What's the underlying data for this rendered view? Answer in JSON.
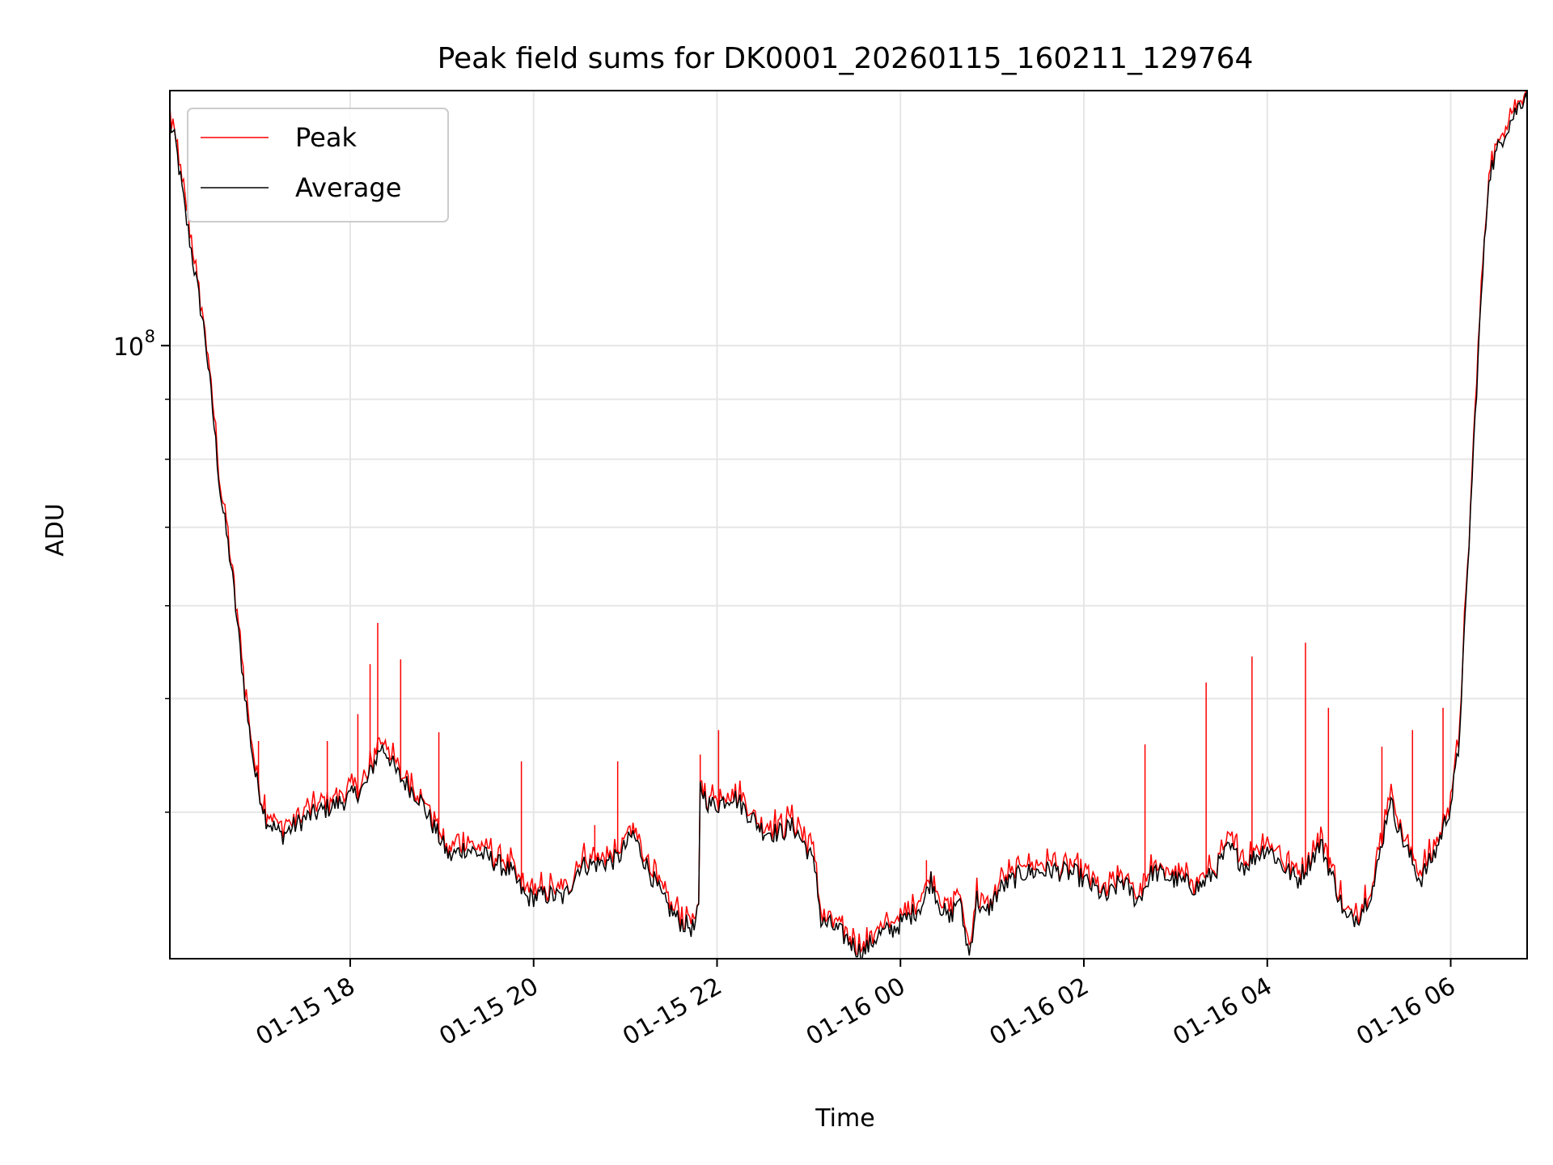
{
  "chart_data": {
    "type": "line",
    "title": "Peak field sums for DK0001_20260115_160211_129764",
    "xlabel": "Time",
    "ylabel": "ADU",
    "yscale": "log",
    "ylim": [
      30000000,
      165000000
    ],
    "xlim": [
      "2026-01-15 16:02",
      "2026-01-16 06:50"
    ],
    "grid": true,
    "legend_position": "upper-left",
    "x_ticks": [
      {
        "time": "2026-01-15 18:00",
        "label": "01-15 18"
      },
      {
        "time": "2026-01-15 20:00",
        "label": "01-15 20"
      },
      {
        "time": "2026-01-15 22:00",
        "label": "01-15 22"
      },
      {
        "time": "2026-01-16 00:00",
        "label": "01-16 00"
      },
      {
        "time": "2026-01-16 02:00",
        "label": "01-16 02"
      },
      {
        "time": "2026-01-16 04:00",
        "label": "01-16 04"
      },
      {
        "time": "2026-01-16 06:00",
        "label": "01-16 06"
      }
    ],
    "y_ticks": [
      {
        "value": 100000000,
        "base": "10",
        "exponent": "8"
      }
    ],
    "y_minor_ticks": [
      40000000,
      50000000,
      60000000,
      70000000,
      80000000,
      90000000,
      200000000
    ],
    "series": [
      {
        "name": "Peak",
        "color": "#ff0000"
      },
      {
        "name": "Average",
        "color": "#000000"
      }
    ],
    "average_points": [
      [
        "2026-01-15 16:02",
        155000000
      ],
      [
        "2026-01-15 16:06",
        148000000
      ],
      [
        "2026-01-15 16:12",
        130000000
      ],
      [
        "2026-01-15 16:20",
        112000000
      ],
      [
        "2026-01-15 16:25",
        102000000
      ],
      [
        "2026-01-15 16:30",
        88000000
      ],
      [
        "2026-01-15 16:35",
        75000000
      ],
      [
        "2026-01-15 16:42",
        65000000
      ],
      [
        "2026-01-15 16:48",
        55000000
      ],
      [
        "2026-01-15 16:53",
        48000000
      ],
      [
        "2026-01-15 16:58",
        43000000
      ],
      [
        "2026-01-15 17:05",
        39500000
      ],
      [
        "2026-01-15 17:15",
        38200000
      ],
      [
        "2026-01-15 17:30",
        39500000
      ],
      [
        "2026-01-15 17:45",
        40300000
      ],
      [
        "2026-01-15 18:00",
        41200000
      ],
      [
        "2026-01-15 18:10",
        42100000
      ],
      [
        "2026-01-15 18:15",
        43800000
      ],
      [
        "2026-01-15 18:20",
        45500000
      ],
      [
        "2026-01-15 18:25",
        44800000
      ],
      [
        "2026-01-15 18:30",
        43200000
      ],
      [
        "2026-01-15 18:45",
        41200000
      ],
      [
        "2026-01-15 18:55",
        38800000
      ],
      [
        "2026-01-15 19:05",
        36600000
      ],
      [
        "2026-01-15 19:15",
        37300000
      ],
      [
        "2026-01-15 19:30",
        36600000
      ],
      [
        "2026-01-15 19:45",
        35600000
      ],
      [
        "2026-01-15 19:55",
        33800000
      ],
      [
        "2026-01-15 20:10",
        34000000
      ],
      [
        "2026-01-15 20:20",
        33800000
      ],
      [
        "2026-01-15 20:30",
        36000000
      ],
      [
        "2026-01-15 20:45",
        36200000
      ],
      [
        "2026-01-15 20:55",
        36500000
      ],
      [
        "2026-01-15 21:05",
        38300000
      ],
      [
        "2026-01-15 21:15",
        35800000
      ],
      [
        "2026-01-15 21:25",
        33600000
      ],
      [
        "2026-01-15 21:35",
        32300000
      ],
      [
        "2026-01-15 21:45",
        31800000
      ],
      [
        "2026-01-15 21:48",
        33000000
      ],
      [
        "2026-01-15 21:49",
        42000000
      ],
      [
        "2026-01-15 21:55",
        40600000
      ],
      [
        "2026-01-15 22:00",
        40600000
      ],
      [
        "2026-01-15 22:10",
        41400000
      ],
      [
        "2026-01-15 22:20",
        40000000
      ],
      [
        "2026-01-15 22:30",
        38600000
      ],
      [
        "2026-01-15 22:40",
        38400000
      ],
      [
        "2026-01-15 22:50",
        38900000
      ],
      [
        "2026-01-15 23:00",
        37000000
      ],
      [
        "2026-01-15 23:05",
        35500000
      ],
      [
        "2026-01-15 23:08",
        32200000
      ],
      [
        "2026-01-15 23:15",
        32000000
      ],
      [
        "2026-01-15 23:25",
        31200000
      ],
      [
        "2026-01-15 23:35",
        30300000
      ],
      [
        "2026-01-15 23:45",
        31400000
      ],
      [
        "2026-01-15 23:55",
        31800000
      ],
      [
        "2026-01-16 00:05",
        32500000
      ],
      [
        "2026-01-16 00:15",
        33500000
      ],
      [
        "2026-01-16 00:20",
        35100000
      ],
      [
        "2026-01-16 00:25",
        33500000
      ],
      [
        "2026-01-16 00:32",
        32300000
      ],
      [
        "2026-01-16 00:38",
        33900000
      ],
      [
        "2026-01-16 00:45",
        30200000
      ],
      [
        "2026-01-16 00:50",
        33800000
      ],
      [
        "2026-01-16 00:55",
        32600000
      ],
      [
        "2026-01-16 01:05",
        34400000
      ],
      [
        "2026-01-16 01:20",
        35500000
      ],
      [
        "2026-01-16 01:40",
        35700000
      ],
      [
        "2026-01-16 01:55",
        35400000
      ],
      [
        "2026-01-16 02:05",
        34600000
      ],
      [
        "2026-01-16 02:15",
        33800000
      ],
      [
        "2026-01-16 02:25",
        35000000
      ],
      [
        "2026-01-16 02:35",
        33600000
      ],
      [
        "2026-01-16 02:45",
        35600000
      ],
      [
        "2026-01-16 03:00",
        35000000
      ],
      [
        "2026-01-16 03:15",
        34500000
      ],
      [
        "2026-01-16 03:25",
        35500000
      ],
      [
        "2026-01-16 03:35",
        37300000
      ],
      [
        "2026-01-16 03:45",
        36000000
      ],
      [
        "2026-01-16 04:00",
        37400000
      ],
      [
        "2026-01-16 04:10",
        36000000
      ],
      [
        "2026-01-16 04:20",
        35000000
      ],
      [
        "2026-01-16 04:35",
        37600000
      ],
      [
        "2026-01-16 04:45",
        34500000
      ],
      [
        "2026-01-16 04:52",
        32300000
      ],
      [
        "2026-01-16 05:00",
        32700000
      ],
      [
        "2026-01-16 05:10",
        34700000
      ],
      [
        "2026-01-16 05:20",
        41000000
      ],
      [
        "2026-01-16 05:30",
        37500000
      ],
      [
        "2026-01-16 05:40",
        35000000
      ],
      [
        "2026-01-16 05:50",
        37000000
      ],
      [
        "2026-01-16 06:00",
        40600000
      ],
      [
        "2026-01-16 06:05",
        45000000
      ],
      [
        "2026-01-16 06:10",
        60000000
      ],
      [
        "2026-01-16 06:15",
        82000000
      ],
      [
        "2026-01-16 06:20",
        110000000
      ],
      [
        "2026-01-16 06:25",
        140000000
      ],
      [
        "2026-01-16 06:35",
        152000000
      ],
      [
        "2026-01-16 06:50",
        165000000
      ]
    ],
    "peak_spikes": [
      [
        "2026-01-15 17:00",
        46000000
      ],
      [
        "2026-01-15 17:45",
        46000000
      ],
      [
        "2026-01-15 18:05",
        48500000
      ],
      [
        "2026-01-15 18:13",
        53500000
      ],
      [
        "2026-01-15 18:18",
        58000000
      ],
      [
        "2026-01-15 18:33",
        54000000
      ],
      [
        "2026-01-15 18:58",
        46800000
      ],
      [
        "2026-01-15 19:52",
        44200000
      ],
      [
        "2026-01-15 20:40",
        39000000
      ],
      [
        "2026-01-15 20:55",
        44200000
      ],
      [
        "2026-01-15 21:49",
        44800000
      ],
      [
        "2026-01-15 22:01",
        47000000
      ],
      [
        "2026-01-16 00:17",
        36400000
      ],
      [
        "2026-01-16 02:40",
        45700000
      ],
      [
        "2026-01-16 03:20",
        51600000
      ],
      [
        "2026-01-16 03:50",
        54300000
      ],
      [
        "2026-01-16 04:25",
        55800000
      ],
      [
        "2026-01-16 04:40",
        49100000
      ],
      [
        "2026-01-16 05:15",
        45500000
      ],
      [
        "2026-01-16 05:35",
        47000000
      ],
      [
        "2026-01-16 05:55",
        49100000
      ]
    ]
  }
}
